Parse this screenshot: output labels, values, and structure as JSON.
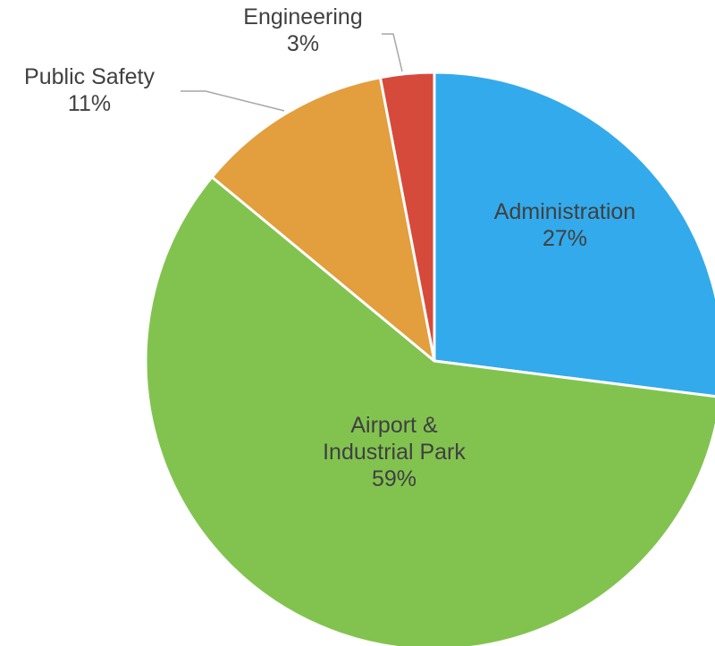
{
  "chart_data": {
    "type": "pie",
    "title": "",
    "slices": [
      {
        "label": [
          "Administration"
        ],
        "value": 27,
        "display": "27%",
        "color": "#33aaeb"
      },
      {
        "label": [
          "Airport &",
          "Industrial Park"
        ],
        "value": 59,
        "display": "59%",
        "color": "#82c350"
      },
      {
        "label": [
          "Public Safety"
        ],
        "value": 11,
        "display": "11%",
        "color": "#e39e3d"
      },
      {
        "label": [
          "Engineering"
        ],
        "value": 3,
        "display": "3%",
        "color": "#d64a3b"
      }
    ],
    "legend": "none",
    "data_labels": "category and percentage"
  }
}
